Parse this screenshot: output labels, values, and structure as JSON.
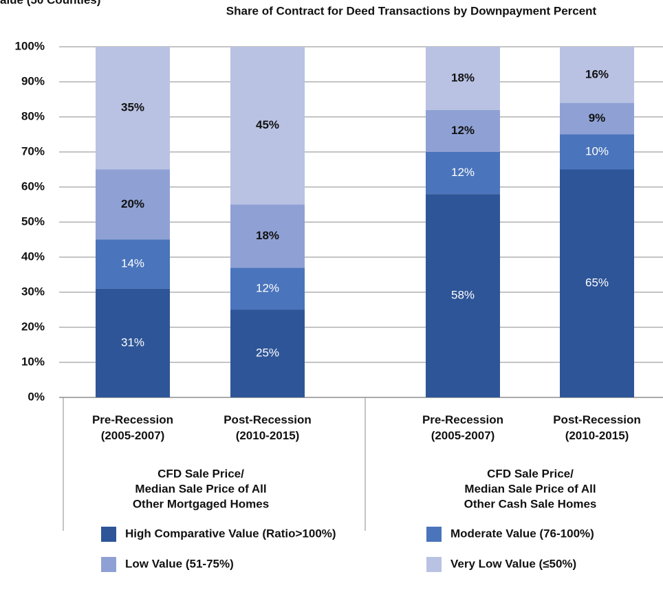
{
  "chart_data": {
    "type": "stacked_bar",
    "title": "Share of Contract for Deed Transactions by Downpayment Percent",
    "subtitle": "alue (50 Counties)",
    "categories": [
      "Pre-Recession (2005-2007)",
      "Post-Recession (2010-2015)",
      "Pre-Recession (2005-2007)",
      "Post-Recession (2010-2015)"
    ],
    "groups": [
      {
        "label_lines": [
          "CFD Sale Price/",
          "Median Sale Price of All",
          "Other Mortgaged Homes"
        ]
      },
      {
        "label_lines": [
          "CFD Sale Price/",
          "Median Sale Price of All",
          "Other Cash Sale Homes"
        ]
      }
    ],
    "series": [
      {
        "name": "High Comparative Value (Ratio>100%)",
        "color": "#2e5597",
        "values": [
          31,
          25,
          58,
          65
        ],
        "value_labels": [
          "31%",
          "25%",
          "58%",
          "65%"
        ]
      },
      {
        "name": "Moderate Value (76-100%)",
        "color": "#4a74bb",
        "values": [
          14,
          12,
          12,
          10
        ],
        "value_labels": [
          "14%",
          "12%",
          "12%",
          "10%"
        ]
      },
      {
        "name": "Low Value (51-75%)",
        "color": "#8fa1d4",
        "values": [
          20,
          18,
          12,
          9
        ],
        "value_labels": [
          "20%",
          "18%",
          "12%",
          "9%"
        ]
      },
      {
        "name": "Very Low Value (≤50%)",
        "color": "#b9c2e3",
        "values": [
          35,
          45,
          18,
          16
        ],
        "value_labels": [
          "35%",
          "45%",
          "18%",
          "16%"
        ]
      }
    ],
    "ylim": [
      0,
      100
    ],
    "yticks": [
      {
        "value": 0,
        "label": "0%"
      },
      {
        "value": 10,
        "label": "10%"
      },
      {
        "value": 20,
        "label": "20%"
      },
      {
        "value": 30,
        "label": "30%"
      },
      {
        "value": 40,
        "label": "40%"
      },
      {
        "value": 50,
        "label": "50%"
      },
      {
        "value": 60,
        "label": "60%"
      },
      {
        "value": 70,
        "label": "70%"
      },
      {
        "value": 80,
        "label": "80%"
      },
      {
        "value": 90,
        "label": "90%"
      },
      {
        "value": 100,
        "label": "100%"
      }
    ],
    "grid": true
  }
}
